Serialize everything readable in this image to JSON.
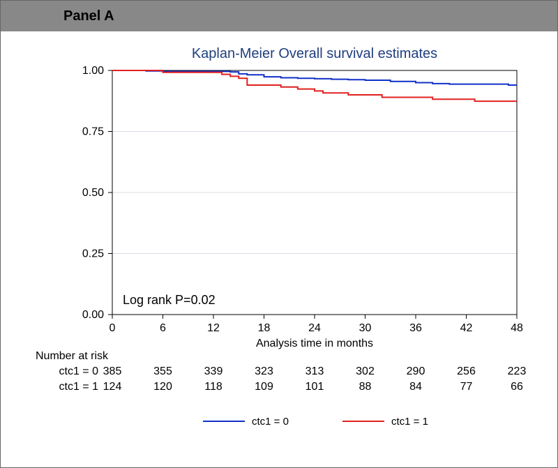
{
  "panel_label": "Panel A",
  "chart": {
    "type": "kaplan-meier",
    "title": "Kaplan-Meier Overall survival estimates",
    "xlabel": "Analysis time in months",
    "note": "Log rank P=0.02",
    "title_fontsize": 20,
    "title_color": "#1f3f7f",
    "axis_fontsize": 16,
    "plot_bg": "#ffffff",
    "outer_bg": "#ffffff",
    "grid_color": "#d8dee6",
    "axis_color": "#000000",
    "x": {
      "min": 0,
      "max": 48,
      "ticks": [
        0,
        6,
        12,
        18,
        24,
        30,
        36,
        42,
        48
      ]
    },
    "y": {
      "min": 0,
      "max": 1,
      "ticks": [
        0.0,
        0.25,
        0.5,
        0.75,
        1.0
      ],
      "fmt": "0.00"
    },
    "series": [
      {
        "name": "ctc1 = 0",
        "color": "#1030c8",
        "width": 2,
        "points": [
          [
            0,
            1.0
          ],
          [
            3,
            1.0
          ],
          [
            4,
            0.998
          ],
          [
            6,
            0.996
          ],
          [
            8,
            0.996
          ],
          [
            10,
            0.996
          ],
          [
            12,
            0.996
          ],
          [
            14,
            0.994
          ],
          [
            15,
            0.986
          ],
          [
            16,
            0.982
          ],
          [
            18,
            0.974
          ],
          [
            20,
            0.97
          ],
          [
            22,
            0.968
          ],
          [
            24,
            0.966
          ],
          [
            26,
            0.964
          ],
          [
            28,
            0.962
          ],
          [
            30,
            0.96
          ],
          [
            33,
            0.955
          ],
          [
            36,
            0.95
          ],
          [
            38,
            0.946
          ],
          [
            40,
            0.944
          ],
          [
            42,
            0.944
          ],
          [
            44,
            0.944
          ],
          [
            47,
            0.94
          ],
          [
            48,
            0.94
          ]
        ]
      },
      {
        "name": "ctc1 = 1",
        "color": "#e02020",
        "width": 2,
        "points": [
          [
            0,
            1.0
          ],
          [
            5,
            1.0
          ],
          [
            6,
            0.992
          ],
          [
            8,
            0.992
          ],
          [
            11,
            0.992
          ],
          [
            13,
            0.984
          ],
          [
            14,
            0.976
          ],
          [
            15,
            0.968
          ],
          [
            16,
            0.94
          ],
          [
            17,
            0.94
          ],
          [
            18,
            0.94
          ],
          [
            20,
            0.932
          ],
          [
            22,
            0.924
          ],
          [
            24,
            0.916
          ],
          [
            25,
            0.908
          ],
          [
            27,
            0.908
          ],
          [
            28,
            0.9
          ],
          [
            30,
            0.9
          ],
          [
            32,
            0.89
          ],
          [
            36,
            0.89
          ],
          [
            38,
            0.882
          ],
          [
            42,
            0.882
          ],
          [
            43,
            0.874
          ],
          [
            47,
            0.874
          ],
          [
            48,
            0.874
          ]
        ]
      }
    ],
    "risk_table": {
      "header": "Number at risk",
      "times": [
        0,
        6,
        12,
        18,
        24,
        30,
        36,
        42,
        48
      ],
      "rows": [
        {
          "label": "ctc1 = 0",
          "values": [
            385,
            355,
            339,
            323,
            313,
            302,
            290,
            256,
            223
          ]
        },
        {
          "label": "ctc1 = 1",
          "values": [
            124,
            120,
            118,
            109,
            101,
            88,
            84,
            77,
            66
          ]
        }
      ]
    },
    "legend": {
      "items": [
        {
          "label": "ctc1 = 0",
          "color": "#1030c8"
        },
        {
          "label": "ctc1 = 1",
          "color": "#e02020"
        }
      ]
    },
    "panel_bar_bg": "#888888"
  }
}
